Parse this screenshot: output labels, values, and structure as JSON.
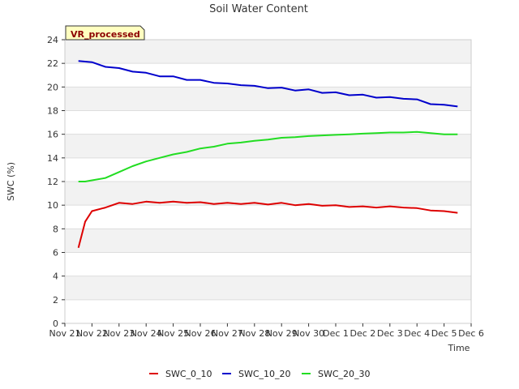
{
  "chart_data": {
    "type": "line",
    "title": "Soil Water Content",
    "xlabel": "Time",
    "ylabel": "SWC (%)",
    "badge": "VR_processed",
    "ylim": [
      0,
      24
    ],
    "yticks": [
      0,
      2,
      4,
      6,
      8,
      10,
      12,
      14,
      16,
      18,
      20,
      22,
      24
    ],
    "xlim": [
      "2023-11-21",
      "2023-12-06"
    ],
    "xtick_labels": [
      "Nov 21",
      "Nov 22",
      "Nov 23",
      "Nov 24",
      "Nov 25",
      "Nov 26",
      "Nov 27",
      "Nov 28",
      "Nov 29",
      "Nov 30",
      "Dec 1",
      "Dec 2",
      "Dec 3",
      "Dec 4",
      "Dec 5",
      "Dec 6"
    ],
    "grid": "horizontal bands",
    "legend_position": "bottom",
    "x": [
      "2023-11-21 12:00",
      "2023-11-21 18:00",
      "2023-11-22 00:00",
      "2023-11-22 12:00",
      "2023-11-23 00:00",
      "2023-11-23 12:00",
      "2023-11-24 00:00",
      "2023-11-24 12:00",
      "2023-11-25 00:00",
      "2023-11-25 12:00",
      "2023-11-26 00:00",
      "2023-11-26 12:00",
      "2023-11-27 00:00",
      "2023-11-27 12:00",
      "2023-11-28 00:00",
      "2023-11-28 12:00",
      "2023-11-29 00:00",
      "2023-11-29 12:00",
      "2023-11-30 00:00",
      "2023-11-30 12:00",
      "2023-12-01 00:00",
      "2023-12-01 12:00",
      "2023-12-02 00:00",
      "2023-12-02 12:00",
      "2023-12-03 00:00",
      "2023-12-03 12:00",
      "2023-12-04 00:00",
      "2023-12-04 12:00",
      "2023-12-05 00:00",
      "2023-12-05 12:00"
    ],
    "series": [
      {
        "name": "SWC_0_10",
        "color": "#dd0000",
        "values": [
          6.4,
          8.6,
          9.5,
          9.8,
          10.2,
          10.1,
          10.3,
          10.2,
          10.3,
          10.2,
          10.25,
          10.1,
          10.2,
          10.1,
          10.2,
          10.05,
          10.2,
          10.0,
          10.1,
          9.95,
          10.0,
          9.85,
          9.9,
          9.8,
          9.9,
          9.8,
          9.75,
          9.55,
          9.5,
          9.35
        ]
      },
      {
        "name": "SWC_10_20",
        "color": "#0000cc",
        "values": [
          22.2,
          22.15,
          22.1,
          21.7,
          21.6,
          21.3,
          21.2,
          20.9,
          20.9,
          20.6,
          20.6,
          20.35,
          20.3,
          20.15,
          20.1,
          19.9,
          19.95,
          19.7,
          19.8,
          19.5,
          19.55,
          19.3,
          19.35,
          19.1,
          19.15,
          19.0,
          18.95,
          18.55,
          18.5,
          18.35
        ]
      },
      {
        "name": "SWC_20_30",
        "color": "#22dd22",
        "values": [
          12.0,
          12.0,
          12.1,
          12.3,
          12.8,
          13.3,
          13.7,
          14.0,
          14.3,
          14.5,
          14.8,
          14.95,
          15.2,
          15.3,
          15.45,
          15.55,
          15.7,
          15.75,
          15.85,
          15.9,
          15.95,
          16.0,
          16.05,
          16.1,
          16.15,
          16.15,
          16.2,
          16.1,
          16.0,
          16.0
        ]
      }
    ]
  }
}
